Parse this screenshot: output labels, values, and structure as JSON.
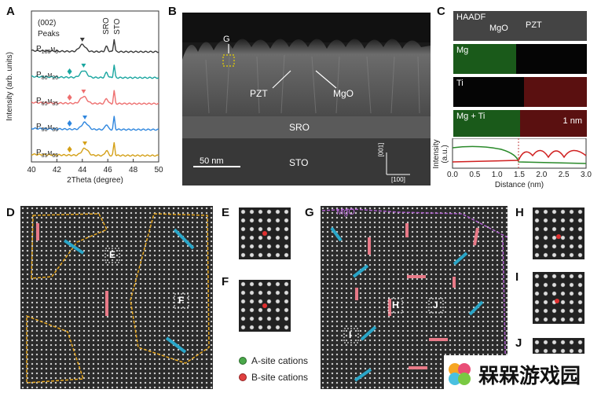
{
  "panels": {
    "A": {
      "label": "A",
      "peak_note_line1": "(002)",
      "peak_note_line2": "Peaks",
      "sro": "SRO",
      "sto": "STO",
      "ylabel": "Intensity (arb. units)",
      "xlabel": "2Theta (degree)",
      "series_labels": [
        {
          "base": "P",
          "sub1": "100",
          "mid": "M",
          "sub2": "0"
        },
        {
          "base": "P",
          "sub1": "80",
          "mid": "M",
          "sub2": "20"
        },
        {
          "base": "P",
          "sub1": "65",
          "mid": "M",
          "sub2": "35"
        },
        {
          "base": "P",
          "sub1": "50",
          "mid": "M",
          "sub2": "50"
        },
        {
          "base": "P",
          "sub1": "35",
          "mid": "M",
          "sub2": "65"
        }
      ],
      "colors": [
        "#3a3a3a",
        "#1aa6a0",
        "#ee6f6f",
        "#2e86de",
        "#d4a017"
      ]
    },
    "B": {
      "label": "B",
      "g": "G",
      "pzt": "PZT",
      "mgo": "MgO",
      "sro": "SRO",
      "sto": "STO",
      "scale": "50 nm",
      "dir1": "[001]",
      "dir2": "[100]"
    },
    "C": {
      "label": "C",
      "haadf": "HAADF",
      "mgo": "MgO",
      "pzt": "PZT",
      "mg": "Mg",
      "ti": "Ti",
      "mgti": "Mg + Ti",
      "scale": "1 nm",
      "ylabel1": "Intensity",
      "ylabel2": "(a.u.)",
      "xlabel": "Distance (nm)",
      "xticks": [
        "0.0",
        "0.5",
        "1.0",
        "1.5",
        "2.0",
        "2.5",
        "3.0"
      ]
    },
    "D": {
      "label": "D",
      "e": "E",
      "f": "F"
    },
    "E": {
      "label": "E"
    },
    "F": {
      "label": "F"
    },
    "G": {
      "label": "G",
      "mgo": "MgO",
      "h": "H",
      "i": "I",
      "j": "J"
    },
    "H": {
      "label": "H"
    },
    "I": {
      "label": "I"
    },
    "J": {
      "label": "J"
    },
    "legend": {
      "a_site": "A-site cations",
      "b_site": "B-site cations"
    }
  },
  "chart_data": {
    "type": "line",
    "xlabel": "2Theta (degree)",
    "ylabel": "Intensity (arb. units)",
    "xlim": [
      40,
      50
    ],
    "xticks": [
      40,
      42,
      44,
      46,
      48,
      50
    ],
    "series": [
      {
        "name": "P100M0",
        "peaks": [
          44.0,
          45.9,
          46.5
        ]
      },
      {
        "name": "P80M20",
        "peaks": [
          44.1,
          45.9,
          46.5
        ]
      },
      {
        "name": "P65M35",
        "peaks": [
          44.1,
          45.9,
          46.5
        ]
      },
      {
        "name": "P50M50",
        "peaks": [
          44.2,
          45.9,
          46.5
        ]
      },
      {
        "name": "P35M65",
        "peaks": [
          44.2,
          45.9,
          46.5
        ]
      }
    ]
  },
  "watermark": {
    "text": "槑槑游戏园"
  }
}
